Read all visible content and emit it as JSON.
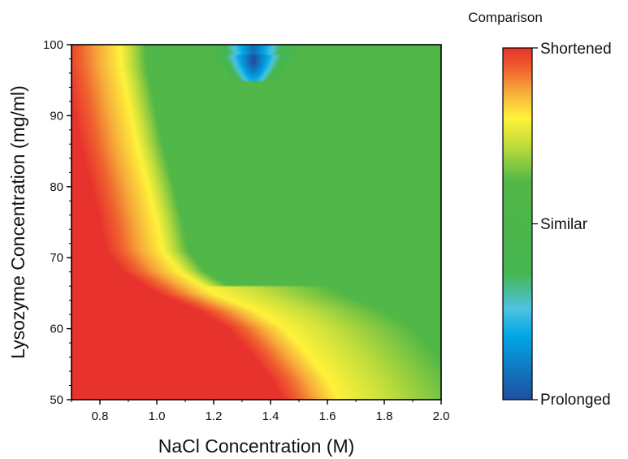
{
  "chart_data": {
    "type": "heatmap",
    "subtype": "contour",
    "xlabel": "NaCl Concentration (M)",
    "ylabel": "Lysozyme Concentration (mg/ml)",
    "xlim": [
      0.7,
      2.0
    ],
    "ylim": [
      50,
      100
    ],
    "xticks": [
      0.8,
      1.0,
      1.2,
      1.4,
      1.6,
      1.8,
      2.0
    ],
    "xtick_labels": [
      "0.8",
      "1.0",
      "1.2",
      "1.4",
      "1.6",
      "1.8",
      "2.0"
    ],
    "yticks": [
      50,
      60,
      70,
      80,
      90,
      100
    ],
    "ytick_labels": [
      "50",
      "60",
      "70",
      "80",
      "90",
      "100"
    ],
    "colorbar": {
      "title": "Comparison",
      "labels": [
        "Shortened",
        "Similar",
        "Prolonged"
      ],
      "stops": [
        {
          "v": 0.0,
          "color": "#1f4e9e"
        },
        {
          "v": 0.18,
          "color": "#00a6e6"
        },
        {
          "v": 0.26,
          "color": "#4dc3e0"
        },
        {
          "v": 0.36,
          "color": "#46b650"
        },
        {
          "v": 0.62,
          "color": "#52b747"
        },
        {
          "v": 0.73,
          "color": "#c6df3b"
        },
        {
          "v": 0.8,
          "color": "#fff23a"
        },
        {
          "v": 0.87,
          "color": "#f7b23b"
        },
        {
          "v": 0.94,
          "color": "#f0622f"
        },
        {
          "v": 1.0,
          "color": "#e8322d"
        }
      ]
    },
    "yellow_boundary": [
      {
        "y": 50,
        "x": 1.64
      },
      {
        "y": 53,
        "x": 1.6
      },
      {
        "y": 57,
        "x": 1.52
      },
      {
        "y": 60,
        "x": 1.45
      },
      {
        "y": 62.5,
        "x": 1.35
      },
      {
        "y": 65,
        "x": 1.2
      },
      {
        "y": 68,
        "x": 1.08
      },
      {
        "y": 71,
        "x": 1.02
      },
      {
        "y": 75,
        "x": 1.0
      },
      {
        "y": 80,
        "x": 0.97
      },
      {
        "y": 86,
        "x": 0.93
      },
      {
        "y": 92,
        "x": 0.9
      },
      {
        "y": 97,
        "x": 0.875
      },
      {
        "y": 100,
        "x": 0.87
      }
    ],
    "prolonged_region": {
      "x": 1.34,
      "y": 97.5,
      "x_halfwidth": 0.13,
      "y_halfheight": 5.5
    }
  }
}
